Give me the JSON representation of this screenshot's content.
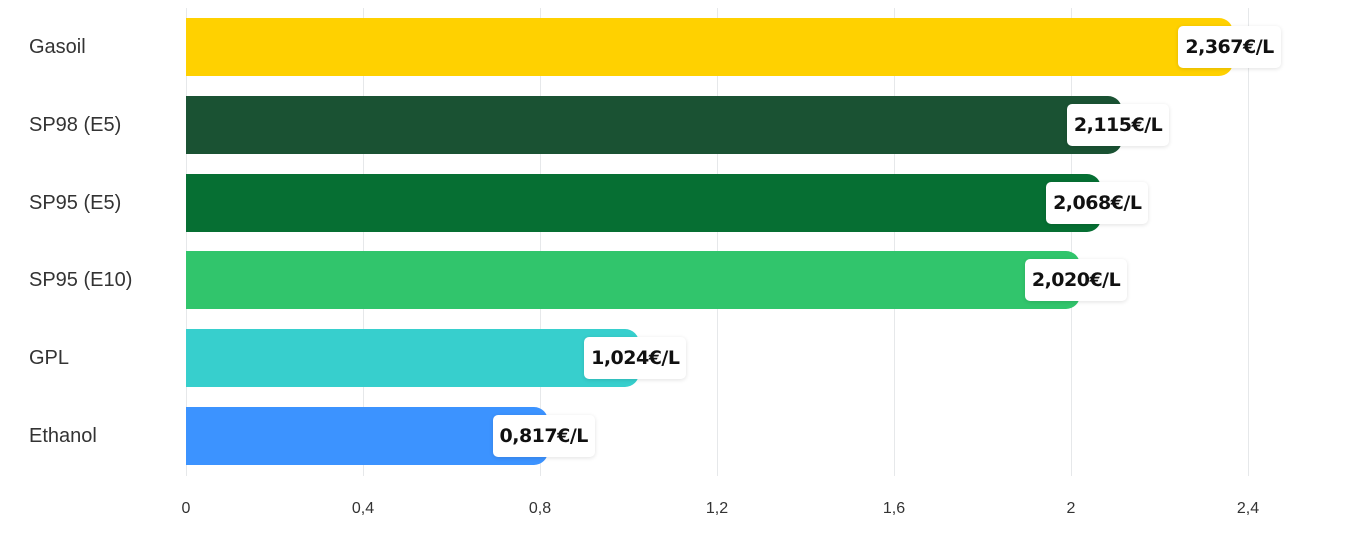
{
  "chart_data": {
    "type": "bar",
    "orientation": "horizontal",
    "title": "",
    "xlabel": "",
    "ylabel": "",
    "categories": [
      "Gasoil",
      "SP98 (E5)",
      "SP95 (E5)",
      "SP95 (E10)",
      "GPL",
      "Ethanol"
    ],
    "values": [
      2.367,
      2.115,
      2.068,
      2.02,
      1.024,
      0.817
    ],
    "data_labels": [
      "2,367€/L",
      "2,115€/L",
      "2,068€/L",
      "2,020€/L",
      "1,024€/L",
      "0,817€/L"
    ],
    "colors": [
      "#ffd100",
      "#1a5233",
      "#066f33",
      "#31c56c",
      "#37cfcd",
      "#3c93ff"
    ],
    "xlim": [
      0,
      2.4
    ],
    "x_ticks": [
      "0",
      "0,4",
      "0,8",
      "1,2",
      "1,6",
      "2",
      "2,4"
    ],
    "grid": true,
    "legend": "none"
  }
}
